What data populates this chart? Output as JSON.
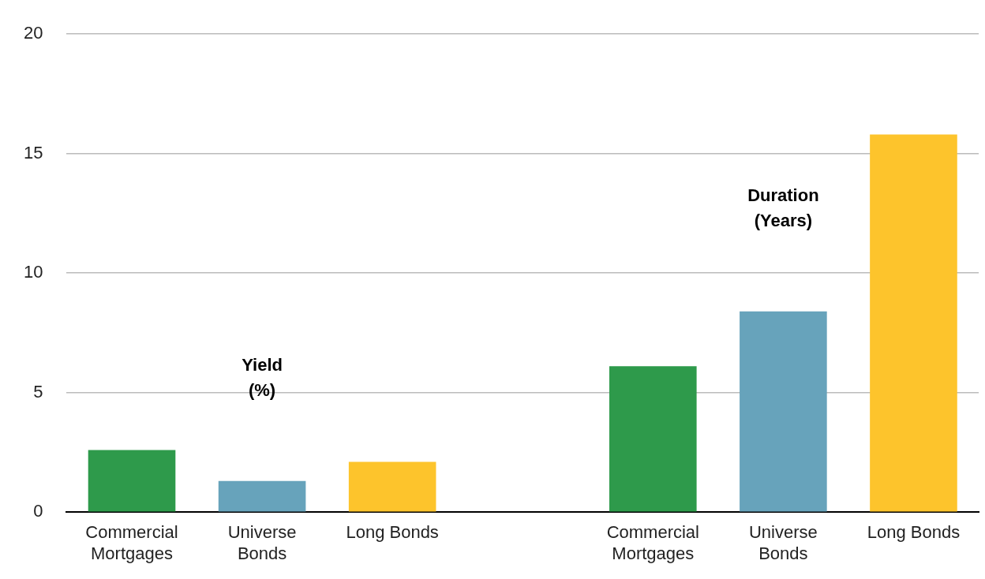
{
  "chart_data": {
    "type": "bar",
    "categories": [
      "Commercial Mortgages",
      "Universe Bonds",
      "Long Bonds",
      null,
      "Commercial Mortgages",
      "Universe Bonds",
      "Long Bonds"
    ],
    "values": [
      2.6,
      1.3,
      2.1,
      null,
      6.1,
      8.4,
      15.8
    ],
    "colors": [
      "#2e9a4b",
      "#67a3bb",
      "#fdc42c",
      null,
      "#2e9a4b",
      "#67a3bb",
      "#fdc42c"
    ],
    "ylim": [
      0,
      20
    ],
    "yticks": [
      0,
      5,
      10,
      15,
      20
    ],
    "grid": "y",
    "legend": false,
    "annotations": [
      "Yield (%)",
      "Duration (Years)"
    ]
  }
}
